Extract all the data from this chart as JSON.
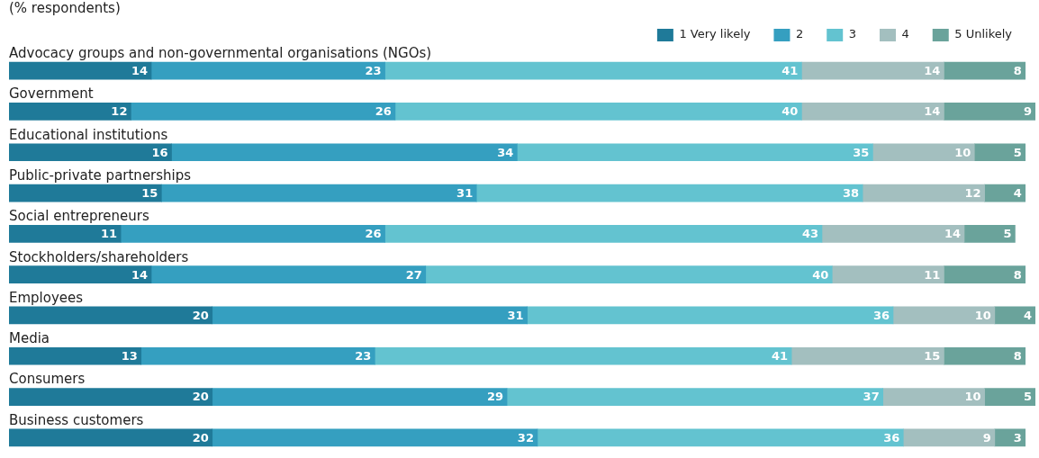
{
  "chart_data": {
    "type": "bar",
    "orientation": "horizontal",
    "stacked": true,
    "title": "(% respondents)",
    "categories": [
      "Advocacy groups and non-governmental organisations (NGOs)",
      "Government",
      "Educational institutions",
      "Public-private partnerships",
      "Social entrepreneurs",
      "Stockholders/shareholders",
      "Employees",
      "Media",
      "Consumers",
      "Business customers"
    ],
    "series": [
      {
        "name": "1 Very likely",
        "color": "#1f7a99",
        "values": [
          14,
          12,
          16,
          15,
          11,
          14,
          20,
          13,
          20,
          20
        ]
      },
      {
        "name": "2",
        "color": "#359fc0",
        "values": [
          23,
          26,
          34,
          31,
          26,
          27,
          31,
          23,
          29,
          32
        ]
      },
      {
        "name": "3",
        "color": "#63c3d0",
        "values": [
          41,
          40,
          35,
          38,
          43,
          40,
          36,
          41,
          37,
          36
        ]
      },
      {
        "name": "4",
        "color": "#a3bfbf",
        "values": [
          14,
          14,
          10,
          12,
          14,
          11,
          10,
          15,
          10,
          9
        ]
      },
      {
        "name": "5 Unlikely",
        "color": "#6aa39b",
        "values": [
          8,
          9,
          5,
          4,
          5,
          8,
          4,
          8,
          5,
          3
        ]
      }
    ],
    "xlim": [
      0,
      101
    ],
    "legend": "top right",
    "data_labels": true
  }
}
